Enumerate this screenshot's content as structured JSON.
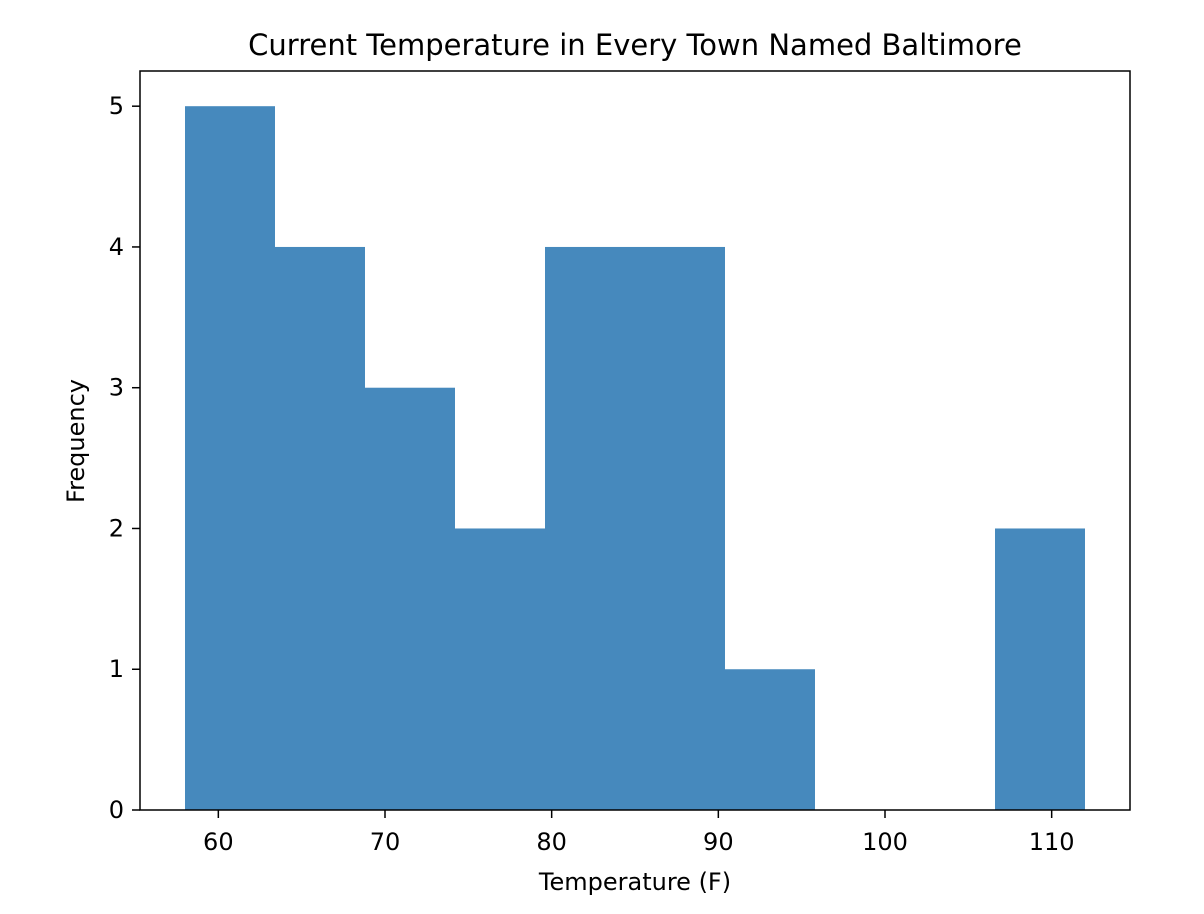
{
  "chart_data": {
    "type": "bar",
    "title": "Current Temperature in Every Town Named Baltimore",
    "xlabel": "Temperature (F)",
    "ylabel": "Frequency",
    "bins": [
      {
        "x0": 58.0,
        "x1": 63.4,
        "count": 5
      },
      {
        "x0": 63.4,
        "x1": 68.8,
        "count": 4
      },
      {
        "x0": 68.8,
        "x1": 74.2,
        "count": 3
      },
      {
        "x0": 74.2,
        "x1": 79.6,
        "count": 2
      },
      {
        "x0": 79.6,
        "x1": 85.0,
        "count": 4
      },
      {
        "x0": 85.0,
        "x1": 90.4,
        "count": 4
      },
      {
        "x0": 90.4,
        "x1": 95.8,
        "count": 1
      },
      {
        "x0": 95.8,
        "x1": 101.2,
        "count": 0
      },
      {
        "x0": 101.2,
        "x1": 106.6,
        "count": 0
      },
      {
        "x0": 106.6,
        "x1": 112.0,
        "count": 2
      }
    ],
    "xlim": [
      55.3,
      114.7
    ],
    "ylim": [
      0,
      5.25
    ],
    "xticks": [
      60,
      70,
      80,
      90,
      100,
      110
    ],
    "yticks": [
      0,
      1,
      2,
      3,
      4,
      5
    ],
    "bar_color": "#4689bd",
    "grid": false,
    "legend": "none"
  }
}
